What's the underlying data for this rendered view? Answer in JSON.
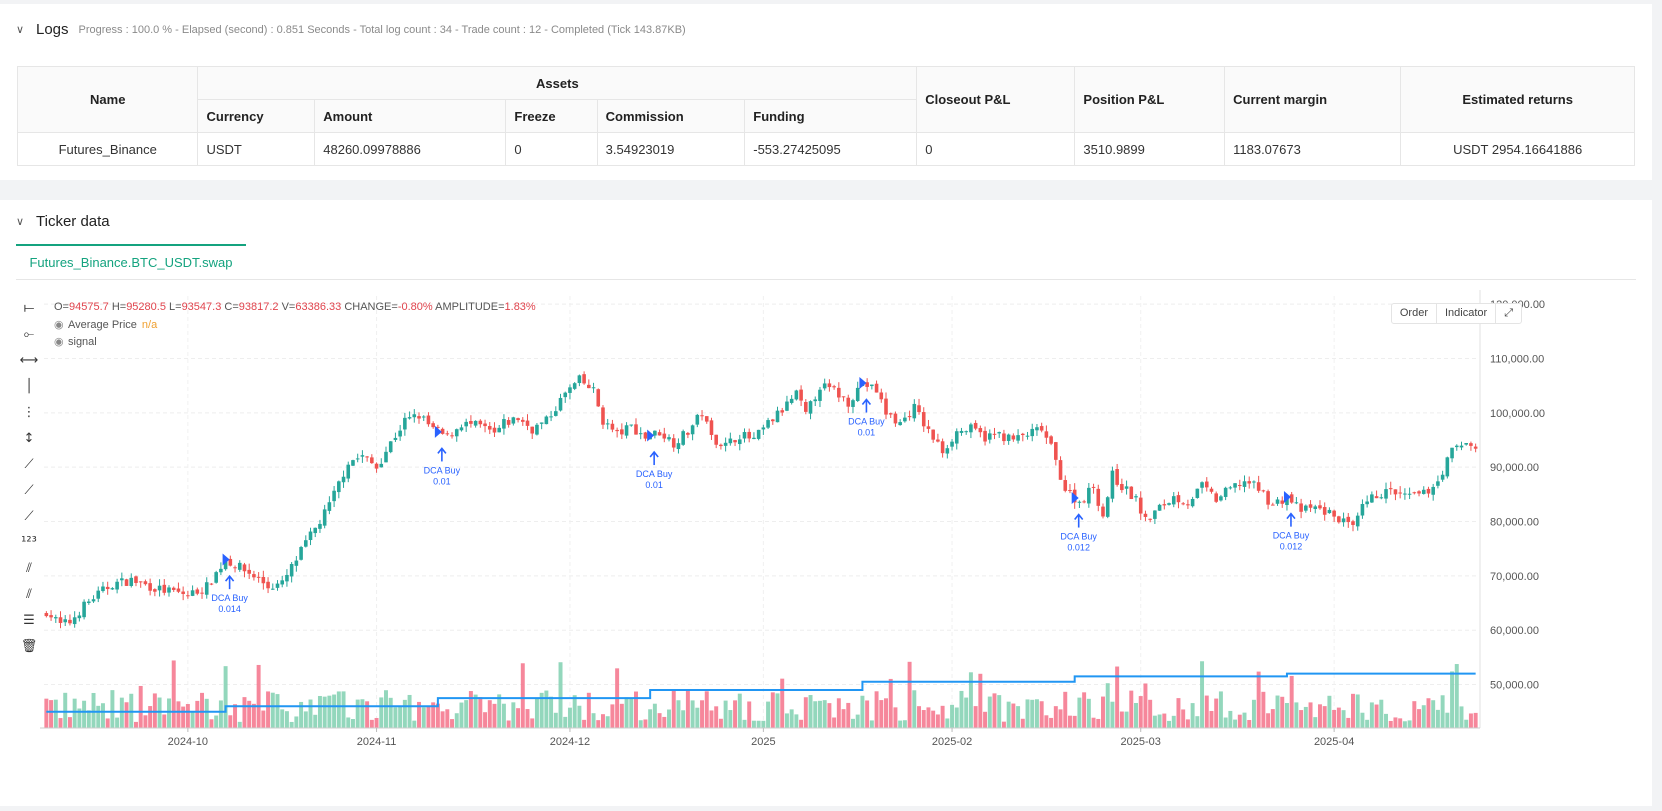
{
  "logs": {
    "title": "Logs",
    "status": "Progress : 100.0 % - Elapsed (second) : 0.851  Seconds - Total log count : 34 - Trade count : 12 - Completed (Tick 143.87KB)",
    "table": {
      "headers": {
        "name": "Name",
        "assets": "Assets",
        "currency": "Currency",
        "amount": "Amount",
        "freeze": "Freeze",
        "commission": "Commission",
        "funding": "Funding",
        "closeout": "Closeout P&L",
        "position": "Position P&L",
        "margin": "Current margin",
        "returns": "Estimated returns"
      },
      "row": {
        "name": "Futures_Binance",
        "currency": "USDT",
        "amount": "48260.09978886",
        "freeze": "0",
        "commission": "3.54923019",
        "funding": "-553.27425095",
        "closeout": "0",
        "position": "3510.9899",
        "margin": "1183.07673",
        "returns": "USDT 2954.16641886"
      }
    }
  },
  "ticker": {
    "title": "Ticker data",
    "tab": "Futures_Binance.BTC_USDT.swap",
    "ohlc": {
      "o_label": "O=",
      "o": "94575.7",
      "h_label": "H=",
      "h": "95280.5",
      "l_label": "L=",
      "l": "93547.3",
      "c_label": "C=",
      "c": "93817.2",
      "v_label": "V=",
      "v": "63386.33",
      "change_label": "CHANGE=",
      "change": "-0.80%",
      "amp_label": "AMPLITUDE=",
      "amp": "1.83%"
    },
    "legend": {
      "avg_price": "Average Price",
      "avg_value": "n/a",
      "signal": "signal"
    },
    "buttons": {
      "order": "Order",
      "indicator": "Indicator"
    }
  },
  "chart_data": {
    "type": "candlestick",
    "x_labels": [
      "2024-10",
      "2024-11",
      "2024-12",
      "2025",
      "2025-02",
      "2025-03",
      "2025-04"
    ],
    "y_labels": [
      "120,000.00",
      "110,000.00",
      "100,000.00",
      "90,000.00",
      "80,000.00",
      "70,000.00",
      "60,000.00",
      "50,000.00"
    ],
    "y_ticks": [
      120000,
      110000,
      100000,
      90000,
      80000,
      70000,
      60000,
      50000
    ],
    "ylim": [
      42000,
      121500
    ],
    "close_keypoints": [
      [
        0,
        63500
      ],
      [
        3,
        61000
      ],
      [
        5,
        61500
      ],
      [
        8,
        64500
      ],
      [
        10,
        66000
      ],
      [
        14,
        68500
      ],
      [
        18,
        69200
      ],
      [
        24,
        67500
      ],
      [
        30,
        66500
      ],
      [
        34,
        68000
      ],
      [
        38,
        73000
      ],
      [
        42,
        71000
      ],
      [
        45,
        69500
      ],
      [
        47,
        68000
      ],
      [
        50,
        68500
      ],
      [
        55,
        76000
      ],
      [
        58,
        80000
      ],
      [
        60,
        83000
      ],
      [
        62,
        87000
      ],
      [
        64,
        91000
      ],
      [
        67,
        92000
      ],
      [
        70,
        90000
      ],
      [
        73,
        94500
      ],
      [
        76,
        98500
      ],
      [
        79,
        99500
      ],
      [
        82,
        97000
      ],
      [
        85,
        95500
      ],
      [
        88,
        98000
      ],
      [
        92,
        97500
      ],
      [
        95,
        96000
      ],
      [
        97,
        98000
      ],
      [
        100,
        99000
      ],
      [
        103,
        97000
      ],
      [
        106,
        98500
      ],
      [
        110,
        103500
      ],
      [
        113,
        106000
      ],
      [
        116,
        104000
      ],
      [
        118,
        98500
      ],
      [
        121,
        96000
      ],
      [
        124,
        97500
      ],
      [
        127,
        95500
      ],
      [
        130,
        96500
      ],
      [
        133,
        94500
      ],
      [
        136,
        96500
      ],
      [
        139,
        100000
      ],
      [
        141,
        95500
      ],
      [
        144,
        94000
      ],
      [
        147,
        96000
      ],
      [
        150,
        95000
      ],
      [
        153,
        98000
      ],
      [
        156,
        100500
      ],
      [
        159,
        103500
      ],
      [
        161,
        99500
      ],
      [
        164,
        105000
      ],
      [
        167,
        104000
      ],
      [
        170,
        102000
      ],
      [
        173,
        105500
      ],
      [
        176,
        104000
      ],
      [
        178,
        100000
      ],
      [
        181,
        98000
      ],
      [
        184,
        101000
      ],
      [
        187,
        96500
      ],
      [
        190,
        93000
      ],
      [
        193,
        96500
      ],
      [
        196,
        97000
      ],
      [
        199,
        95500
      ],
      [
        202,
        96000
      ],
      [
        205,
        95000
      ],
      [
        208,
        96000
      ],
      [
        211,
        97000
      ],
      [
        213,
        93500
      ],
      [
        216,
        86000
      ],
      [
        219,
        83500
      ],
      [
        222,
        86500
      ],
      [
        224,
        81000
      ],
      [
        226,
        88500
      ],
      [
        228,
        86500
      ],
      [
        231,
        84000
      ],
      [
        233,
        80000
      ],
      [
        236,
        82500
      ],
      [
        239,
        84500
      ],
      [
        242,
        83500
      ],
      [
        245,
        86500
      ],
      [
        248,
        84000
      ],
      [
        251,
        86000
      ],
      [
        254,
        87500
      ],
      [
        257,
        86000
      ],
      [
        260,
        83000
      ],
      [
        263,
        84500
      ],
      [
        266,
        82000
      ],
      [
        269,
        82500
      ],
      [
        272,
        81500
      ],
      [
        275,
        80000
      ],
      [
        277,
        78500
      ],
      [
        279,
        82500
      ],
      [
        282,
        85000
      ],
      [
        285,
        85500
      ],
      [
        288,
        84500
      ],
      [
        292,
        85000
      ],
      [
        295,
        87500
      ],
      [
        298,
        93000
      ],
      [
        301,
        94500
      ],
      [
        303,
        93800
      ]
    ],
    "avg_price_steps": [
      [
        0,
        45000
      ],
      [
        38,
        46000
      ],
      [
        83,
        47500
      ],
      [
        128,
        49000
      ],
      [
        173,
        50500
      ],
      [
        218,
        51500
      ],
      [
        263,
        52000
      ],
      [
        303,
        52000
      ]
    ],
    "markers": [
      {
        "label": "DCA Buy",
        "qty": "0.014",
        "bar": 38
      },
      {
        "label": "DCA Buy",
        "qty": "0.01",
        "bar": 83
      },
      {
        "label": "DCA Buy",
        "qty": "0.01",
        "bar": 128
      },
      {
        "label": "DCA Buy",
        "qty": "0.01",
        "bar": 173
      },
      {
        "label": "DCA Buy",
        "qty": "0.012",
        "bar": 218
      },
      {
        "label": "DCA Buy",
        "qty": "0.012",
        "bar": 263
      }
    ],
    "colors": {
      "up": "#26a69a",
      "down": "#ef5350",
      "avg": "#2196f3",
      "marker": "#2962ff"
    }
  }
}
